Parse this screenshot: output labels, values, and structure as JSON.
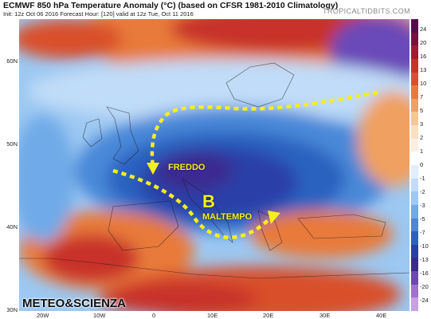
{
  "header": {
    "title": "ECMWF 850 hPa Temperature Anomaly (°C) (based on CFSR 1981-2010 Climatology)",
    "subtitle": "Init: 12z Oct 06 2016   Forecast Hour: [120]   valid at 12z Tue, Oct 11 2016",
    "watermark": "TROPICALTIDBITS.COM"
  },
  "axes": {
    "latitudes": [
      "60N",
      "50N",
      "40N",
      "30N"
    ],
    "longitudes": [
      "20W",
      "10W",
      "0",
      "10E",
      "20E",
      "30E",
      "40E"
    ]
  },
  "legend": {
    "labels": [
      "24",
      "20",
      "16",
      "13",
      "10",
      "7",
      "5",
      "3",
      "2",
      "1",
      "0",
      "-1",
      "-2",
      "-3",
      "-5",
      "-7",
      "-10",
      "-13",
      "-16",
      "-20",
      "-24"
    ],
    "colors": [
      "#5a0a4a",
      "#7a1040",
      "#a51935",
      "#c8322a",
      "#d9502a",
      "#e87a3a",
      "#f0a060",
      "#f5c890",
      "#f9e0c0",
      "#fcefe0",
      "#ffffff",
      "#e0eefc",
      "#c0dcf8",
      "#9cc8f2",
      "#70aae8",
      "#4a88d8",
      "#2a62c0",
      "#2a3fa8",
      "#3a2a90",
      "#6a48b8",
      "#a070d0",
      "#c9a0e0"
    ]
  },
  "annotations": {
    "cold_label": "FREDDO",
    "low_symbol": "B",
    "bad_weather_label": "MALTEMPO",
    "brand": "METEO&SCIENZA"
  },
  "colors": {
    "arrow": "#f5ef1c",
    "ocean_cool": "#9cc8f2",
    "warm": "#d9502a",
    "cold_core": "#2a3fa8"
  }
}
